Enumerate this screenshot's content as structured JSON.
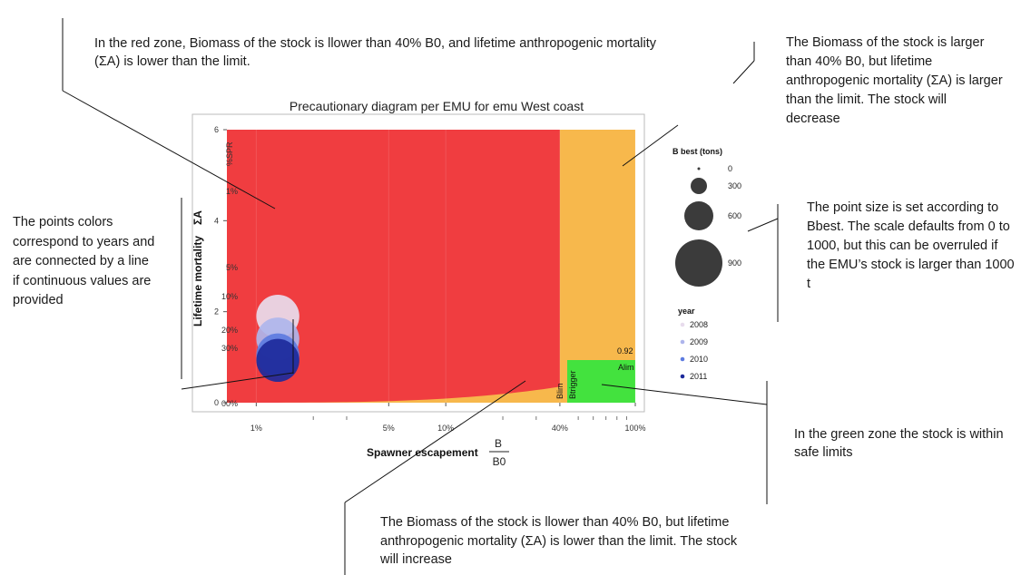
{
  "annotations": {
    "red_zone": "In the red zone,  Biomass  of the stock is llower than 40% B0, and lifetime anthropogenic mortality (ΣA) is lower than the limit.",
    "orange_top": "The Biomass  of the stock is larger than 40% B0, but lifetime anthropogenic mortality (ΣA) is larger than the limit. The stock will decrease",
    "points": "The points colors correspond to years and are connected by a line if  continuous values are provided",
    "point_size": "The point size is set according to Bbest. The scale defaults from 0 to 1000, but this can be overruled if the EMU’s stock is larger than 1000 t",
    "green_zone": "In the green zone the stock is within safe limits",
    "orange_bottom": "The Biomass  of the stock is llower than 40% B0, but  lifetime anthropogenic mortality (ΣA) is lower than the limit. The stock will increase"
  },
  "plot": {
    "title": "Precautionary diagram per EMU for emu West coast",
    "ylabel": "Lifetime mortality",
    "ylabel_symbol": "ΣA",
    "xlabel": "Spawner escapement",
    "xlabel_fraction_num": "B",
    "xlabel_fraction_den": "B0",
    "y_ticks": [
      "0",
      "2",
      "4",
      "6"
    ],
    "x_ticks": [
      "1%",
      "5%",
      "10%",
      "40%",
      "100%"
    ],
    "spr_axis_title": "%SPR",
    "spr_ticks": [
      "1%",
      "5%",
      "10%",
      "20%",
      "30%",
      "00%"
    ],
    "blim_label": "Blim",
    "btrigger_label": "Btrigger",
    "alim_value": "0.92",
    "alim_label": "Alim",
    "colors": {
      "red_zone": "#f03d40",
      "orange_zone": "#f7b84c",
      "green_zone": "#43e23e",
      "panel_bg": "#ebebeb"
    }
  },
  "legend": {
    "size_title": "B best (tons)",
    "size_values": [
      "0",
      "300",
      "600",
      "900"
    ],
    "year_title": "year",
    "years": [
      "2008",
      "2009",
      "2010",
      "2011"
    ],
    "year_colors": [
      "#e8dced",
      "#aeb5ec",
      "#5d7be0",
      "#1d2a9b"
    ]
  },
  "chart_data": {
    "type": "scatter",
    "title": "Precautionary diagram per EMU for emu West coast",
    "xlabel": "Spawner escapement B/B0",
    "ylabel": "Lifetime mortality ΣA",
    "xscale": "log",
    "xlim": [
      0.007,
      1
    ],
    "ylim": [
      0,
      6
    ],
    "reference_points": {
      "Blim_Btrigger_B_over_B0": 0.4,
      "Alim": 0.92
    },
    "series": [
      {
        "name": "2008",
        "x": [
          0.013
        ],
        "y": [
          1.9
        ],
        "bbest": 600
      },
      {
        "name": "2009",
        "x": [
          0.013
        ],
        "y": [
          1.4
        ],
        "bbest": 600
      },
      {
        "name": "2010",
        "x": [
          0.013
        ],
        "y": [
          1.05
        ],
        "bbest": 600
      },
      {
        "name": "2011",
        "x": [
          0.013
        ],
        "y": [
          0.93
        ],
        "bbest": 600
      }
    ]
  }
}
